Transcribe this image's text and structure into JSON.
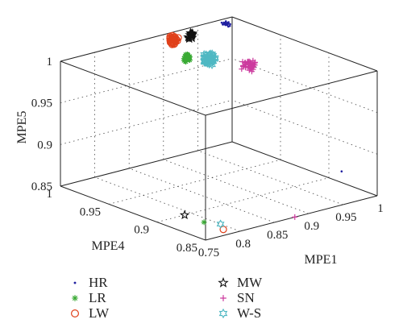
{
  "chart_data": {
    "type": "scatter3d",
    "axes": {
      "x": {
        "label": "MPE1",
        "lim": [
          0.75,
          1.0
        ],
        "ticks": [
          "0.75",
          "0.8",
          "0.85",
          "0.9",
          "0.95",
          "1"
        ]
      },
      "y": {
        "label": "MPE4",
        "lim": [
          0.85,
          1.0
        ],
        "ticks": [
          "0.85",
          "0.9",
          "0.95",
          "1"
        ]
      },
      "z": {
        "label": "MPE5",
        "lim": [
          0.85,
          1.0
        ],
        "ticks": [
          "0.85",
          "0.9",
          "0.95",
          "1"
        ]
      }
    },
    "grid": true,
    "legend_position": "bottom",
    "series": [
      {
        "name": "HR",
        "marker": "dot",
        "color": "#1f1fa0",
        "cluster": {
          "x": 0.985,
          "y": 0.995,
          "z": 0.997,
          "n": 30
        },
        "outliers": [
          [
            0.92,
            0.83,
            0.905
          ]
        ]
      },
      {
        "name": "LR",
        "marker": "asterisk",
        "color": "#3aaa35",
        "cluster": {
          "x": 0.935,
          "y": 1.0,
          "z": 0.965,
          "n": 30
        },
        "outliers": [
          [
            0.79,
            0.88,
            0.85
          ]
        ]
      },
      {
        "name": "LW",
        "marker": "circle",
        "color": "#e0401a",
        "cluster": {
          "x": 0.915,
          "y": 1.0,
          "z": 0.99,
          "n": 40
        },
        "outliers": [
          [
            0.79,
            0.86,
            0.85
          ]
        ]
      },
      {
        "name": "MW",
        "marker": "star",
        "color": "#111111",
        "cluster": {
          "x": 0.94,
          "y": 1.0,
          "z": 0.99,
          "n": 14
        },
        "outliers": [
          [
            0.79,
            0.9,
            0.85
          ]
        ]
      },
      {
        "name": "SN",
        "marker": "plus",
        "color": "#cc3a9e",
        "cluster": {
          "x": 0.99,
          "y": 0.975,
          "z": 0.955,
          "n": 40
        },
        "outliers": [
          [
            0.88,
            0.85,
            0.85
          ]
        ]
      },
      {
        "name": "W-S",
        "marker": "hexagram",
        "color": "#4fb8c3",
        "cluster": {
          "x": 0.96,
          "y": 0.995,
          "z": 0.96,
          "n": 60
        },
        "outliers": [
          [
            0.8,
            0.87,
            0.85
          ]
        ]
      }
    ]
  }
}
